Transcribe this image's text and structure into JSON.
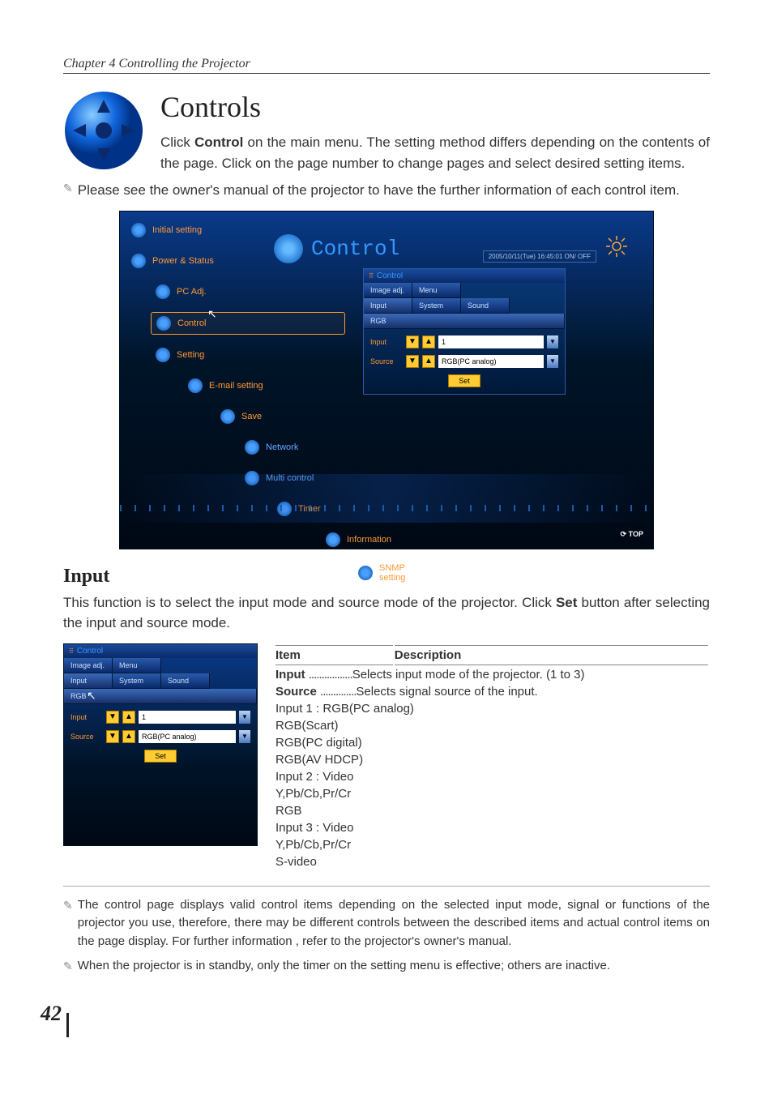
{
  "chapter_header": "Chapter 4 Controlling the Projector",
  "main_title": "Controls",
  "intro_html": "Click <b>Control</b> on the main menu. The setting method differs depending on the contents of the page. Click on the page number to change pages and select desired setting items.",
  "note1": "Please see the owner's manual of the projector to have the further information of each control item.",
  "big_screenshot": {
    "sidebar": [
      {
        "label": "Initial setting",
        "indent": 0,
        "color": "#ff9933"
      },
      {
        "label": "Power & Status",
        "indent": 0,
        "color": "#ff9933"
      },
      {
        "label": "PC Adj.",
        "indent": 1,
        "color": "#ff9933"
      },
      {
        "label": "Control",
        "indent": 1,
        "color": "#ff9933",
        "selected": true
      },
      {
        "label": "Setting",
        "indent": 1,
        "color": "#ff9933"
      },
      {
        "label": "E-mail setting",
        "indent": 2,
        "color": "#ff9933"
      },
      {
        "label": "Save",
        "indent": 3,
        "color": "#ff9933"
      },
      {
        "label": "Network",
        "indent": 4,
        "color": "#66aaff"
      },
      {
        "label": "Multi control",
        "indent": 4,
        "color": "#66aaff"
      },
      {
        "label": "Timer",
        "indent": 5,
        "color": "#ff9933"
      },
      {
        "label": "Information",
        "indent": 6,
        "color": "#ff9933"
      },
      {
        "label": "SNMP setting",
        "indent": 7,
        "color": "#ff9933"
      }
    ],
    "control_title": "Control",
    "datetime": "2005/10/11(Tue) 16:45:01  ON/ OFF",
    "panel": {
      "header": "Control",
      "tabs_row1": [
        "Image adj.",
        "Menu"
      ],
      "tabs_row2": [
        "Input",
        "System",
        "Sound"
      ],
      "tabs_row3": [
        "RGB"
      ],
      "input_label": "Input",
      "input_value": "1",
      "source_label": "Source",
      "source_value": "RGB(PC analog)",
      "set_label": "Set"
    },
    "top_link": "⟳ TOP"
  },
  "section_input_title": "Input",
  "section_input_text": "This function is to select the input mode and source mode of the projector.  Click <b>Set</b> button after selecting the input and source mode.",
  "small_screenshot": {
    "header": "Control",
    "tabs_row1": [
      "Image adj.",
      "Menu"
    ],
    "tabs_row2": [
      "Input",
      "System",
      "Sound"
    ],
    "tabs_row3": [
      "RGB"
    ],
    "input_label": "Input",
    "input_value": "1",
    "source_label": "Source",
    "source_value": "RGB(PC analog)",
    "set_label": "Set"
  },
  "table": {
    "col1": "Item",
    "col2": "Description",
    "rows": [
      {
        "item": "Input",
        "dots": ".................",
        "desc": "Selects input mode of the projector. (1 to 3)"
      },
      {
        "item": "Source",
        "dots": "..............",
        "desc": "Selects signal source of the input."
      }
    ],
    "details": [
      {
        "indent": 1,
        "text": "Input 1 : RGB(PC analog)"
      },
      {
        "indent": 2,
        "text": "RGB(Scart)"
      },
      {
        "indent": 2,
        "text": "RGB(PC digital)"
      },
      {
        "indent": 2,
        "text": "RGB(AV HDCP)"
      },
      {
        "indent": 1,
        "text": "Input 2 : Video"
      },
      {
        "indent": 2,
        "text": "Y,Pb/Cb,Pr/Cr"
      },
      {
        "indent": 2,
        "text": "RGB"
      },
      {
        "indent": 1,
        "text": "Input 3 : Video"
      },
      {
        "indent": 2,
        "text": "Y,Pb/Cb,Pr/Cr"
      },
      {
        "indent": 2,
        "text": "S-video"
      }
    ]
  },
  "footnote1": "The control page displays valid control items depending on the selected input mode, signal or  functions of the projector you use, therefore, there may be different controls between the described items and actual control items on the page display. For further information , refer to the projector's owner's manual.",
  "footnote2": "When the projector is in standby, only the timer on the setting menu is effective; others are inactive.",
  "page_number": "42",
  "colors": {
    "accent_orange": "#ff9933",
    "accent_yellow": "#ffcc33",
    "bg_gradient_top": "#0a3a8a",
    "bg_gradient_bottom": "#000814",
    "panel_border": "#2a5aaa",
    "text_main": "#333333"
  }
}
